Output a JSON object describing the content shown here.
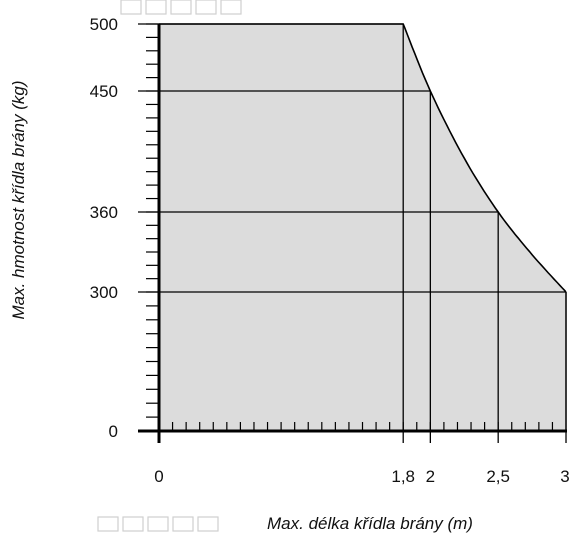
{
  "chart_data": {
    "type": "area",
    "title": "",
    "xlabel": "Max. délka křídla brány (m)",
    "ylabel": "Max. hmotnost křídla brány (kg)",
    "x_ticks": [
      {
        "value": 0,
        "label": "0"
      },
      {
        "value": 1.8,
        "label": "1,8"
      },
      {
        "value": 2,
        "label": "2"
      },
      {
        "value": 2.5,
        "label": "2,5"
      },
      {
        "value": 3,
        "label": "3"
      }
    ],
    "y_ticks": [
      {
        "value": 0,
        "label": "0"
      },
      {
        "value": 300,
        "label": "300"
      },
      {
        "value": 360,
        "label": "360"
      },
      {
        "value": 450,
        "label": "450"
      },
      {
        "value": 500,
        "label": "500"
      }
    ],
    "series": [
      {
        "x": [
          0,
          1.8,
          2,
          2.25,
          2.5,
          2.75,
          3
        ],
        "y": [
          500,
          500,
          450,
          400,
          360,
          328,
          300
        ]
      }
    ],
    "grid": true,
    "colors": {
      "fill": "#dcdcdc",
      "line": "#000000",
      "background": "#ffffff"
    }
  }
}
